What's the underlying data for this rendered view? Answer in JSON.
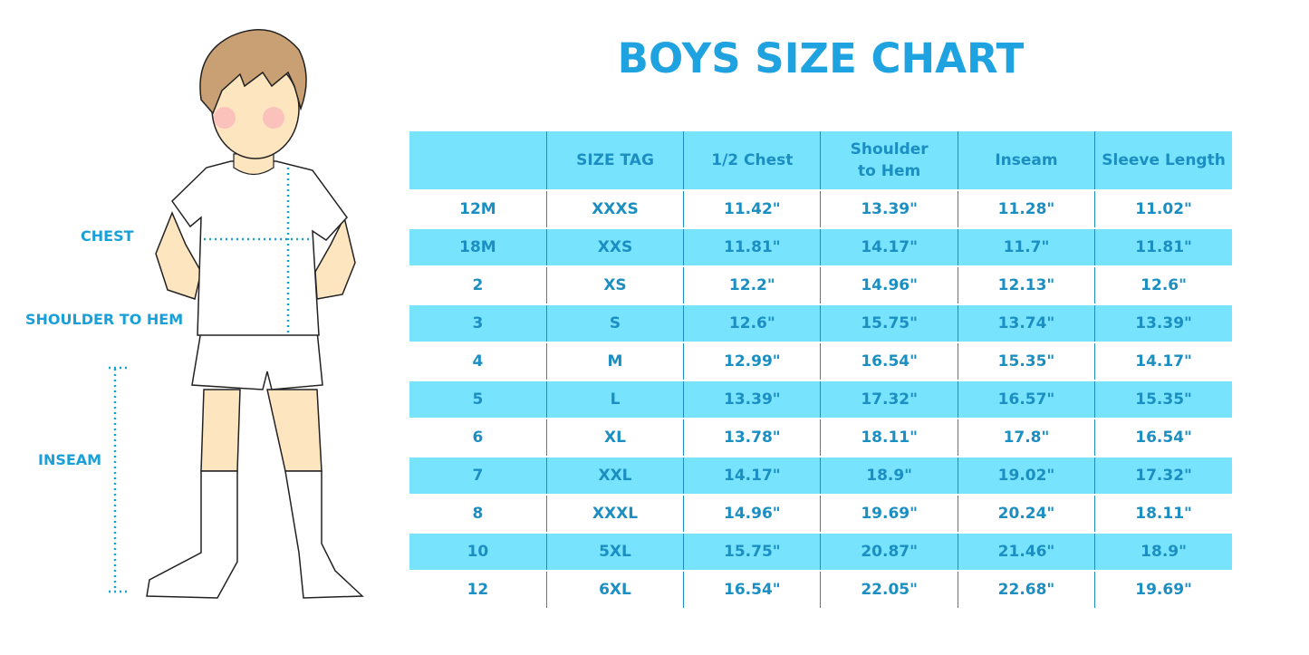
{
  "title": "BOYS SIZE CHART",
  "figure_labels": {
    "chest": "CHEST",
    "shoulder_to_hem": "SHOULDER TO HEM",
    "inseam": "INSEAM"
  },
  "colors": {
    "accent": "#1ea3e0",
    "row_highlight": "#78e3fd",
    "text": "#1b8ec2"
  },
  "table": {
    "headers": [
      "",
      "SIZE TAG",
      "1/2 Chest",
      "Shoulder to Hem",
      "Inseam",
      "Sleeve Length"
    ],
    "rows": [
      [
        "12M",
        "XXXS",
        "11.42\"",
        "13.39\"",
        "11.28\"",
        "11.02\""
      ],
      [
        "18M",
        "XXS",
        "11.81\"",
        "14.17\"",
        "11.7\"",
        "11.81\""
      ],
      [
        "2",
        "XS",
        "12.2\"",
        "14.96\"",
        "12.13\"",
        "12.6\""
      ],
      [
        "3",
        "S",
        "12.6\"",
        "15.75\"",
        "13.74\"",
        "13.39\""
      ],
      [
        "4",
        "M",
        "12.99\"",
        "16.54\"",
        "15.35\"",
        "14.17\""
      ],
      [
        "5",
        "L",
        "13.39\"",
        "17.32\"",
        "16.57\"",
        "15.35\""
      ],
      [
        "6",
        "XL",
        "13.78\"",
        "18.11\"",
        "17.8\"",
        "16.54\""
      ],
      [
        "7",
        "XXL",
        "14.17\"",
        "18.9\"",
        "19.02\"",
        "17.32\""
      ],
      [
        "8",
        "XXXL",
        "14.96\"",
        "19.69\"",
        "20.24\"",
        "18.11\""
      ],
      [
        "10",
        "5XL",
        "15.75\"",
        "20.87\"",
        "21.46\"",
        "18.9\""
      ],
      [
        "12",
        "6XL",
        "16.54\"",
        "22.05\"",
        "22.68\"",
        "19.69\""
      ]
    ]
  }
}
